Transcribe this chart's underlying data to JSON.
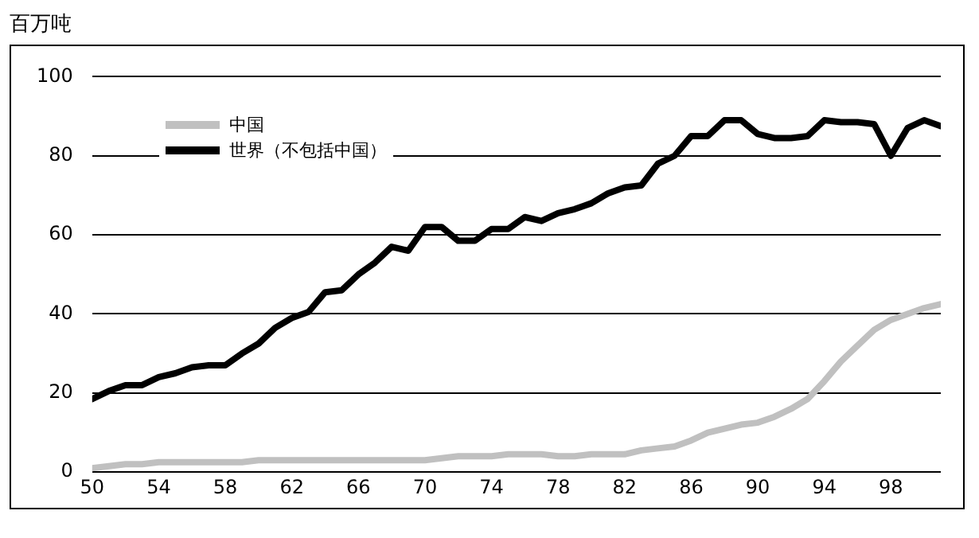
{
  "chart_data": {
    "type": "line",
    "ylabel": "百万吨",
    "x": [
      50,
      51,
      52,
      53,
      54,
      55,
      56,
      57,
      58,
      59,
      60,
      61,
      62,
      63,
      64,
      65,
      66,
      67,
      68,
      69,
      70,
      71,
      72,
      73,
      74,
      75,
      76,
      77,
      78,
      79,
      80,
      81,
      82,
      83,
      84,
      85,
      86,
      87,
      88,
      89,
      90,
      91,
      92,
      93,
      94,
      95,
      96,
      97,
      98,
      99,
      100,
      101
    ],
    "series": [
      {
        "name": "中国",
        "color": "#c0c0c0",
        "values": [
          1,
          1.5,
          2,
          2,
          2.5,
          2.5,
          2.5,
          2.5,
          2.5,
          2.5,
          3,
          3,
          3,
          3,
          3,
          3,
          3,
          3,
          3,
          3,
          3,
          3.5,
          4,
          4,
          4,
          4.5,
          4.5,
          4.5,
          4,
          4,
          4.5,
          4.5,
          4.5,
          5.5,
          6,
          6.5,
          8,
          10,
          11,
          12,
          12.5,
          14,
          16,
          18.5,
          23,
          28,
          32,
          36,
          38.5,
          40,
          41.5,
          42.5
        ]
      },
      {
        "name": "世界（不包括中国）",
        "color": "#000000",
        "values": [
          18.5,
          20.5,
          22,
          22,
          24,
          25,
          26.5,
          27,
          27,
          30,
          32.5,
          36.5,
          39,
          40.5,
          45.5,
          46,
          50,
          53,
          57,
          56,
          62,
          62,
          58.5,
          58.5,
          61.5,
          61.5,
          64.5,
          63.5,
          65.5,
          66.5,
          68,
          70.5,
          72,
          72.5,
          78,
          80,
          85,
          85,
          89,
          89,
          85.5,
          84.5,
          84.5,
          85,
          89,
          88.5,
          88.5,
          88,
          80,
          87,
          89,
          87.5
        ]
      }
    ],
    "xlim": [
      50,
      101
    ],
    "xticks": [
      50,
      54,
      58,
      62,
      66,
      70,
      74,
      78,
      82,
      86,
      90,
      94,
      98
    ],
    "ylim": [
      0,
      100
    ],
    "yticks": [
      0,
      20,
      40,
      60,
      80,
      100
    ],
    "grid": "y",
    "legend": "top left",
    "marker": "none",
    "line_style": "solid"
  }
}
